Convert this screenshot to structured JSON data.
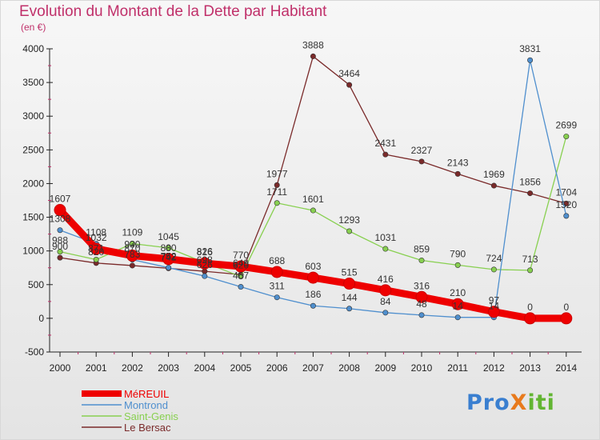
{
  "title": "Evolution du Montant de la Dette par Habitant",
  "subtitle": "(en €)",
  "logo": "ProXiti",
  "chart_data": {
    "type": "line",
    "title": "Evolution du Montant de la Dette par Habitant",
    "ylabel": "(en €)",
    "xlabel": "",
    "ylim": [
      -500,
      4000
    ],
    "yticks": [
      "-500",
      "0",
      "500",
      "1000",
      "1500",
      "2000",
      "2500",
      "3000",
      "3500",
      "4000"
    ],
    "grid": false,
    "legend": "bottom-left",
    "x": [
      "2000",
      "2001",
      "2002",
      "2003",
      "2004",
      "2005",
      "2006",
      "2007",
      "2008",
      "2009",
      "2010",
      "2011",
      "2012",
      "2013",
      "2014"
    ],
    "series": [
      {
        "name": "MéREUIL",
        "color": "#ee0000",
        "values": [
          1607,
          1032,
          930,
          880,
          816,
          770,
          688,
          603,
          515,
          416,
          316,
          210,
          97,
          0,
          0
        ]
      },
      {
        "name": "Montrond",
        "color": "#4f8fce",
        "values": [
          1308,
          1108,
          870,
          752,
          626,
          467,
          311,
          186,
          144,
          84,
          48,
          14,
          14,
          3831,
          1520
        ]
      },
      {
        "name": "Saint-Genis",
        "color": "#88d050",
        "values": [
          988,
          871,
          1109,
          1045,
          826,
          620,
          1711,
          1601,
          1293,
          1031,
          859,
          790,
          724,
          713,
          2699
        ]
      },
      {
        "name": "Le Bersac",
        "color": "#7a2a2a",
        "values": [
          900,
          820,
          783,
          742,
          698,
          649,
          1977,
          3888,
          3464,
          2431,
          2327,
          2143,
          1969,
          1856,
          1704
        ]
      }
    ],
    "point_labels": [
      {
        "series": 0,
        "labels": [
          "1607",
          "1032",
          "930",
          "880",
          "816",
          "770",
          "688",
          "603",
          "515",
          "416",
          "316",
          "210",
          "97",
          "0",
          "0"
        ]
      },
      {
        "series": 1,
        "labels": [
          "1308",
          "1108",
          "870",
          "752",
          "626",
          "467",
          "311",
          "186",
          "144",
          "84",
          "48",
          "14",
          "14",
          "3831",
          "1520"
        ]
      },
      {
        "series": 2,
        "labels": [
          "988",
          "871",
          "1109",
          "1045",
          "826",
          "620",
          "1711",
          "1601",
          "1293",
          "1031",
          "859",
          "790",
          "724",
          "713",
          "2699"
        ]
      },
      {
        "series": 3,
        "labels": [
          "900",
          "820",
          "783",
          "742",
          "698",
          "649",
          "1977",
          "3888",
          "3464",
          "2431",
          "2327",
          "2143",
          "1969",
          "1856",
          "1704"
        ]
      }
    ]
  }
}
